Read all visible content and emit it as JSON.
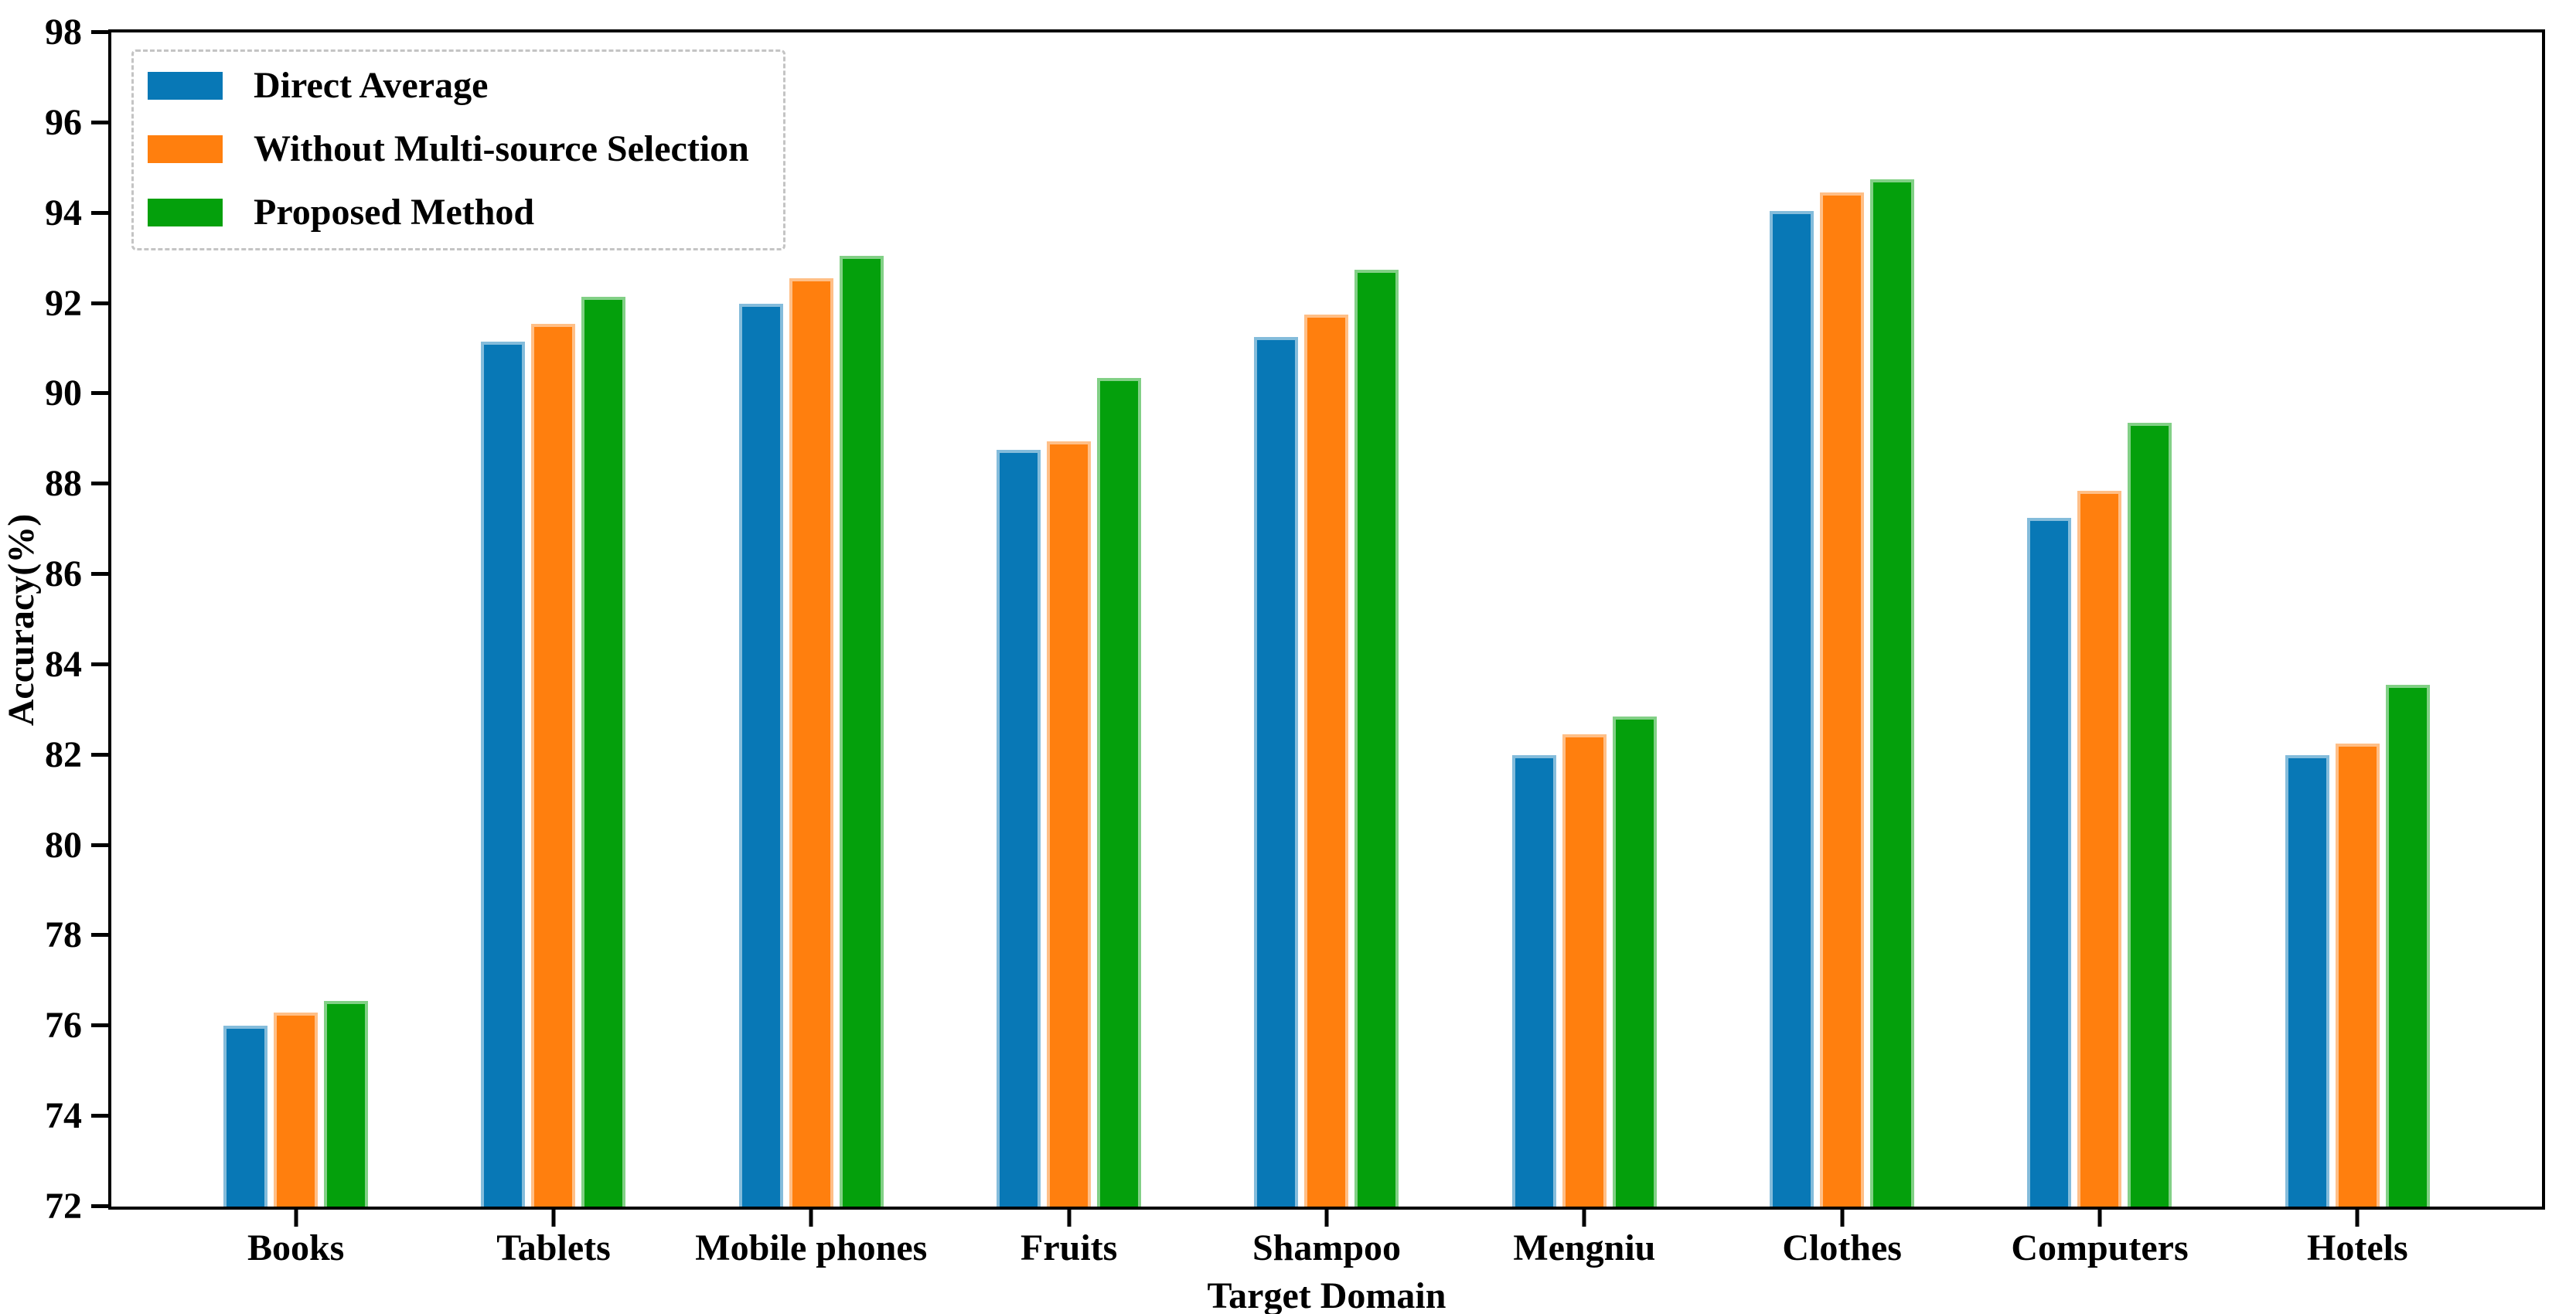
{
  "figure": {
    "background": "#ffffff",
    "frame_color": "#000000"
  },
  "chart_data": {
    "type": "bar",
    "title": "",
    "xlabel": "Target Domain",
    "ylabel": "Accuracy(%)",
    "categories": [
      "Books",
      "Tablets",
      "Mobile phones",
      "Fruits",
      "Shampoo",
      "Mengniu",
      "Clothes",
      "Computers",
      "Hotels"
    ],
    "series": [
      {
        "name": "Direct Average",
        "color": "#0878b6",
        "edge_color": "#84bcdb",
        "values": [
          76.0,
          91.15,
          92.0,
          88.75,
          91.25,
          82.0,
          94.05,
          87.25,
          82.0
        ]
      },
      {
        "name": "Without Multi-source Selection",
        "color": "#ff7f0e",
        "edge_color": "#ffbf87",
        "values": [
          76.3,
          91.55,
          92.55,
          88.95,
          91.75,
          82.45,
          94.45,
          87.85,
          82.25
        ]
      },
      {
        "name": "Proposed Method",
        "color": "#04a00c",
        "edge_color": "#82d086",
        "values": [
          76.55,
          92.15,
          93.05,
          90.35,
          92.75,
          82.85,
          94.75,
          89.35,
          83.55
        ]
      }
    ],
    "ylim": [
      72,
      98
    ],
    "y_ticks": [
      72,
      74,
      76,
      78,
      80,
      82,
      84,
      86,
      88,
      90,
      92,
      94,
      96,
      98
    ],
    "grid": false,
    "legend_position": "upper left",
    "legend_border_color": "#c4c4c4"
  }
}
